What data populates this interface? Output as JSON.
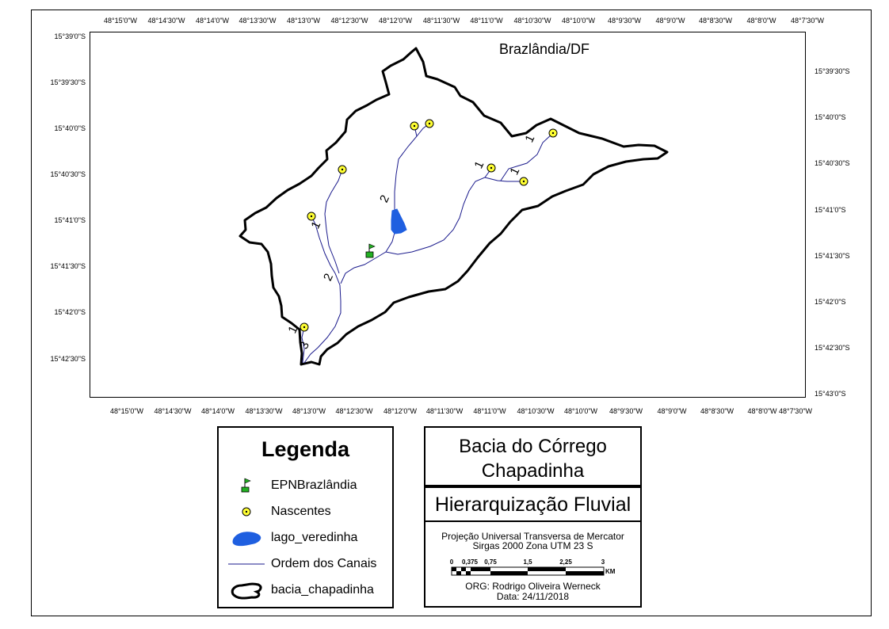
{
  "map": {
    "place_label": "Brazlândia/DF",
    "lon_ticks": [
      "48°15'0\"W",
      "48°14'30\"W",
      "48°14'0\"W",
      "48°13'30\"W",
      "48°13'0\"W",
      "48°12'30\"W",
      "48°12'0\"W",
      "48°11'30\"W",
      "48°11'0\"W",
      "48°10'30\"W",
      "48°10'0\"W",
      "48°9'30\"W",
      "48°9'0\"W",
      "48°8'30\"W",
      "48°8'0\"W",
      "48°7'30\"W"
    ],
    "lat_ticks_left": [
      "15°39'0\"S",
      "15°39'30\"S",
      "15°40'0\"S",
      "15°40'30\"S",
      "15°41'0\"S",
      "15°41'30\"S",
      "15°42'0\"S",
      "15°42'30\"S"
    ],
    "lat_ticks_right": [
      "15°39'30\"S",
      "15°40'0\"S",
      "15°40'30\"S",
      "15°41'0\"S",
      "15°41'30\"S",
      "15°42'0\"S",
      "15°42'30\"S",
      "15°43'0\"S"
    ],
    "stream_order_labels": [
      "1",
      "1",
      "1",
      "1",
      "1",
      "2",
      "2",
      "3"
    ],
    "colors": {
      "stream": "#1a1a8c",
      "lake": "#1f5fe0",
      "spring_fill": "#ffff33",
      "station_flag": "#22b022",
      "boundary": "#000000"
    }
  },
  "legend": {
    "title": "Legenda",
    "items": [
      {
        "icon": "station-flag-icon",
        "label": "EPNBrazlândia"
      },
      {
        "icon": "spring-point-icon",
        "label": "Nascentes"
      },
      {
        "icon": "lake-polygon-icon",
        "label": "lago_veredinha"
      },
      {
        "icon": "channel-line-icon",
        "label": "Ordem dos Canais"
      },
      {
        "icon": "basin-outline-icon",
        "label": "bacia_chapadinha"
      }
    ]
  },
  "title_box": {
    "line1": "Bacia do Córrego",
    "line2": "Chapadinha"
  },
  "subtitle_box": {
    "text": "Hierarquização Fluvial"
  },
  "info_box": {
    "projection_line1": "Projeção Universal Transversa de Mercator",
    "projection_line2": "Sirgas 2000 Zona UTM 23 S",
    "scale_labels": [
      "0",
      "0,375",
      "0,75",
      "1,5",
      "2,25",
      "3"
    ],
    "scale_unit": "KM",
    "author": "ORG: Rodrigo Oliveira Werneck",
    "date": "Data: 24/11/2018"
  }
}
